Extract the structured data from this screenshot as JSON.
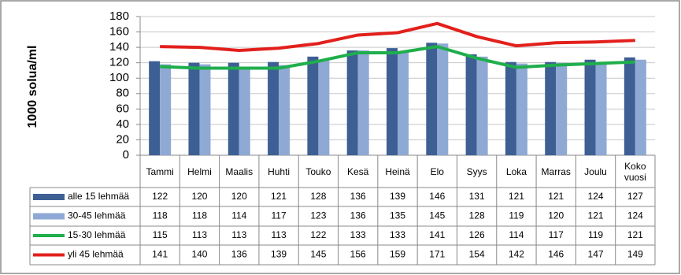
{
  "chart_data": {
    "type": "bar",
    "y_label": "1000 solua/ml",
    "categories": [
      "Tammi",
      "Helmi",
      "Maalis",
      "Huhti",
      "Touko",
      "Kesä",
      "Heinä",
      "Elo",
      "Syys",
      "Loka",
      "Marras",
      "Joulu",
      "Koko vuosi"
    ],
    "series": [
      {
        "name": "alle 15 lehmää",
        "type": "bar",
        "color": "#3d5f93",
        "values": [
          122,
          120,
          120,
          121,
          128,
          136,
          139,
          146,
          131,
          121,
          121,
          124,
          127
        ]
      },
      {
        "name": "30-45 lehmää",
        "type": "bar",
        "color": "#8fa9d5",
        "values": [
          118,
          118,
          114,
          117,
          123,
          136,
          135,
          145,
          128,
          119,
          120,
          121,
          124
        ]
      },
      {
        "name": "15-30 lehmää",
        "type": "line",
        "color": "#1fae4c",
        "values": [
          115,
          113,
          113,
          113,
          122,
          133,
          133,
          141,
          126,
          114,
          117,
          119,
          121
        ]
      },
      {
        "name": "yli 45 lehmää",
        "type": "line",
        "color": "#e2201c",
        "values": [
          141,
          140,
          136,
          139,
          145,
          156,
          159,
          171,
          154,
          142,
          146,
          147,
          149
        ]
      }
    ],
    "ylim": [
      0,
      180
    ],
    "yticks": [
      0,
      20,
      40,
      60,
      80,
      100,
      120,
      140,
      160,
      180
    ],
    "grid": true
  }
}
